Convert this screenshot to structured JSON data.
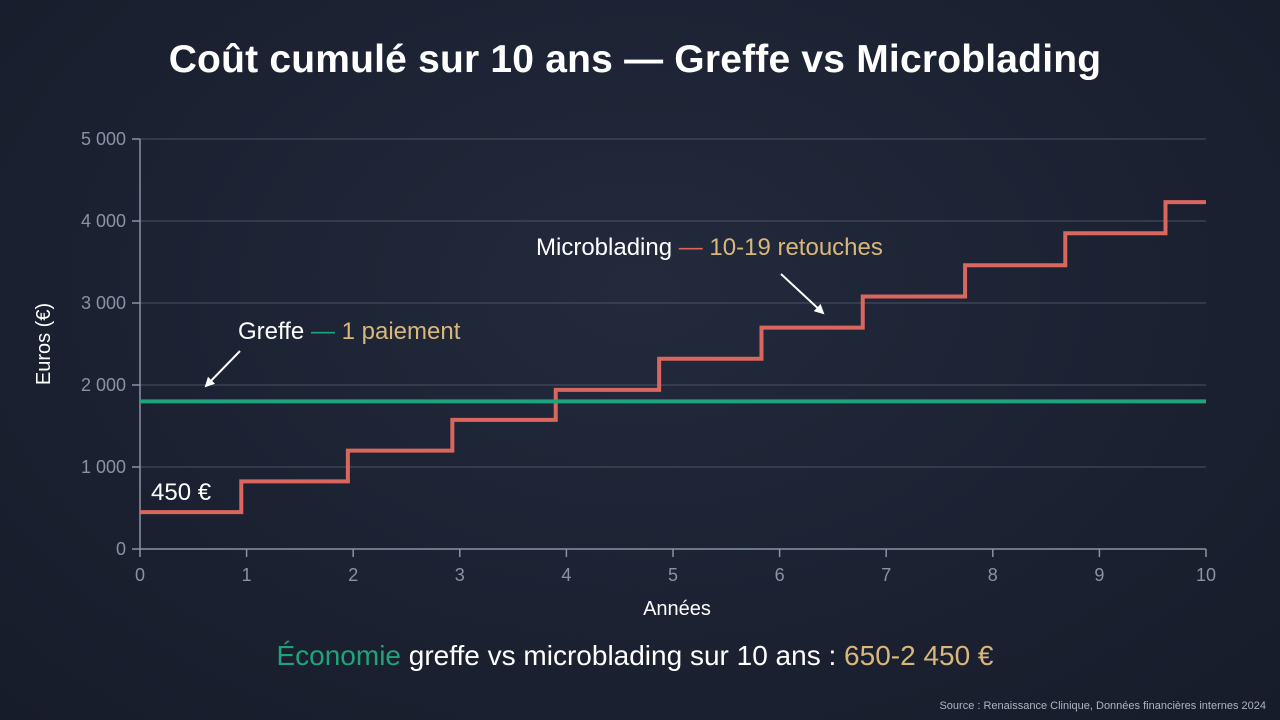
{
  "chart_data": {
    "type": "line",
    "title": "Coût cumulé sur 10 ans — Greffe vs Microblading",
    "xlabel": "Années",
    "ylabel": "Euros (€)",
    "xlim": [
      0,
      10
    ],
    "ylim": [
      0,
      5000
    ],
    "x_ticks": [
      "0",
      "1",
      "2",
      "3",
      "4",
      "5",
      "6",
      "7",
      "8",
      "9",
      "10"
    ],
    "y_ticks": [
      "0",
      "1 000",
      "2 000",
      "3 000",
      "4 000",
      "5 000"
    ],
    "grid": true,
    "series": [
      {
        "name": "Microblading",
        "color": "#d9675e",
        "step": true,
        "x": [
          0,
          0.95,
          1.95,
          2.93,
          3.9,
          4.87,
          5.83,
          6.78,
          7.74,
          8.68,
          9.62,
          10
        ],
        "values": [
          450,
          825,
          1200,
          1575,
          1940,
          2320,
          2700,
          3080,
          3460,
          3850,
          4230,
          4230
        ]
      },
      {
        "name": "Greffe",
        "color": "#1fa37a",
        "x": [
          0,
          10
        ],
        "values": [
          1800,
          1800
        ]
      }
    ],
    "annotations": {
      "start_value": "450 €",
      "micro_label_main": "Microblading",
      "micro_label_dash": "—",
      "micro_label_detail": "10-19 retouches",
      "greffe_label_main": "Greffe",
      "greffe_label_dash": "—",
      "greffe_label_detail": "1 paiement"
    }
  },
  "footer": {
    "highlight": "Économie",
    "text": " greffe vs microblading sur 10 ans : ",
    "value": "650-2 450 €"
  },
  "source": "Source : Renaissance Clinique, Données financières internes 2024",
  "colors": {
    "background": "#1c2233",
    "grid": "#4a5264",
    "axis": "#8a93a6",
    "label_gold": "#d9b77a"
  }
}
